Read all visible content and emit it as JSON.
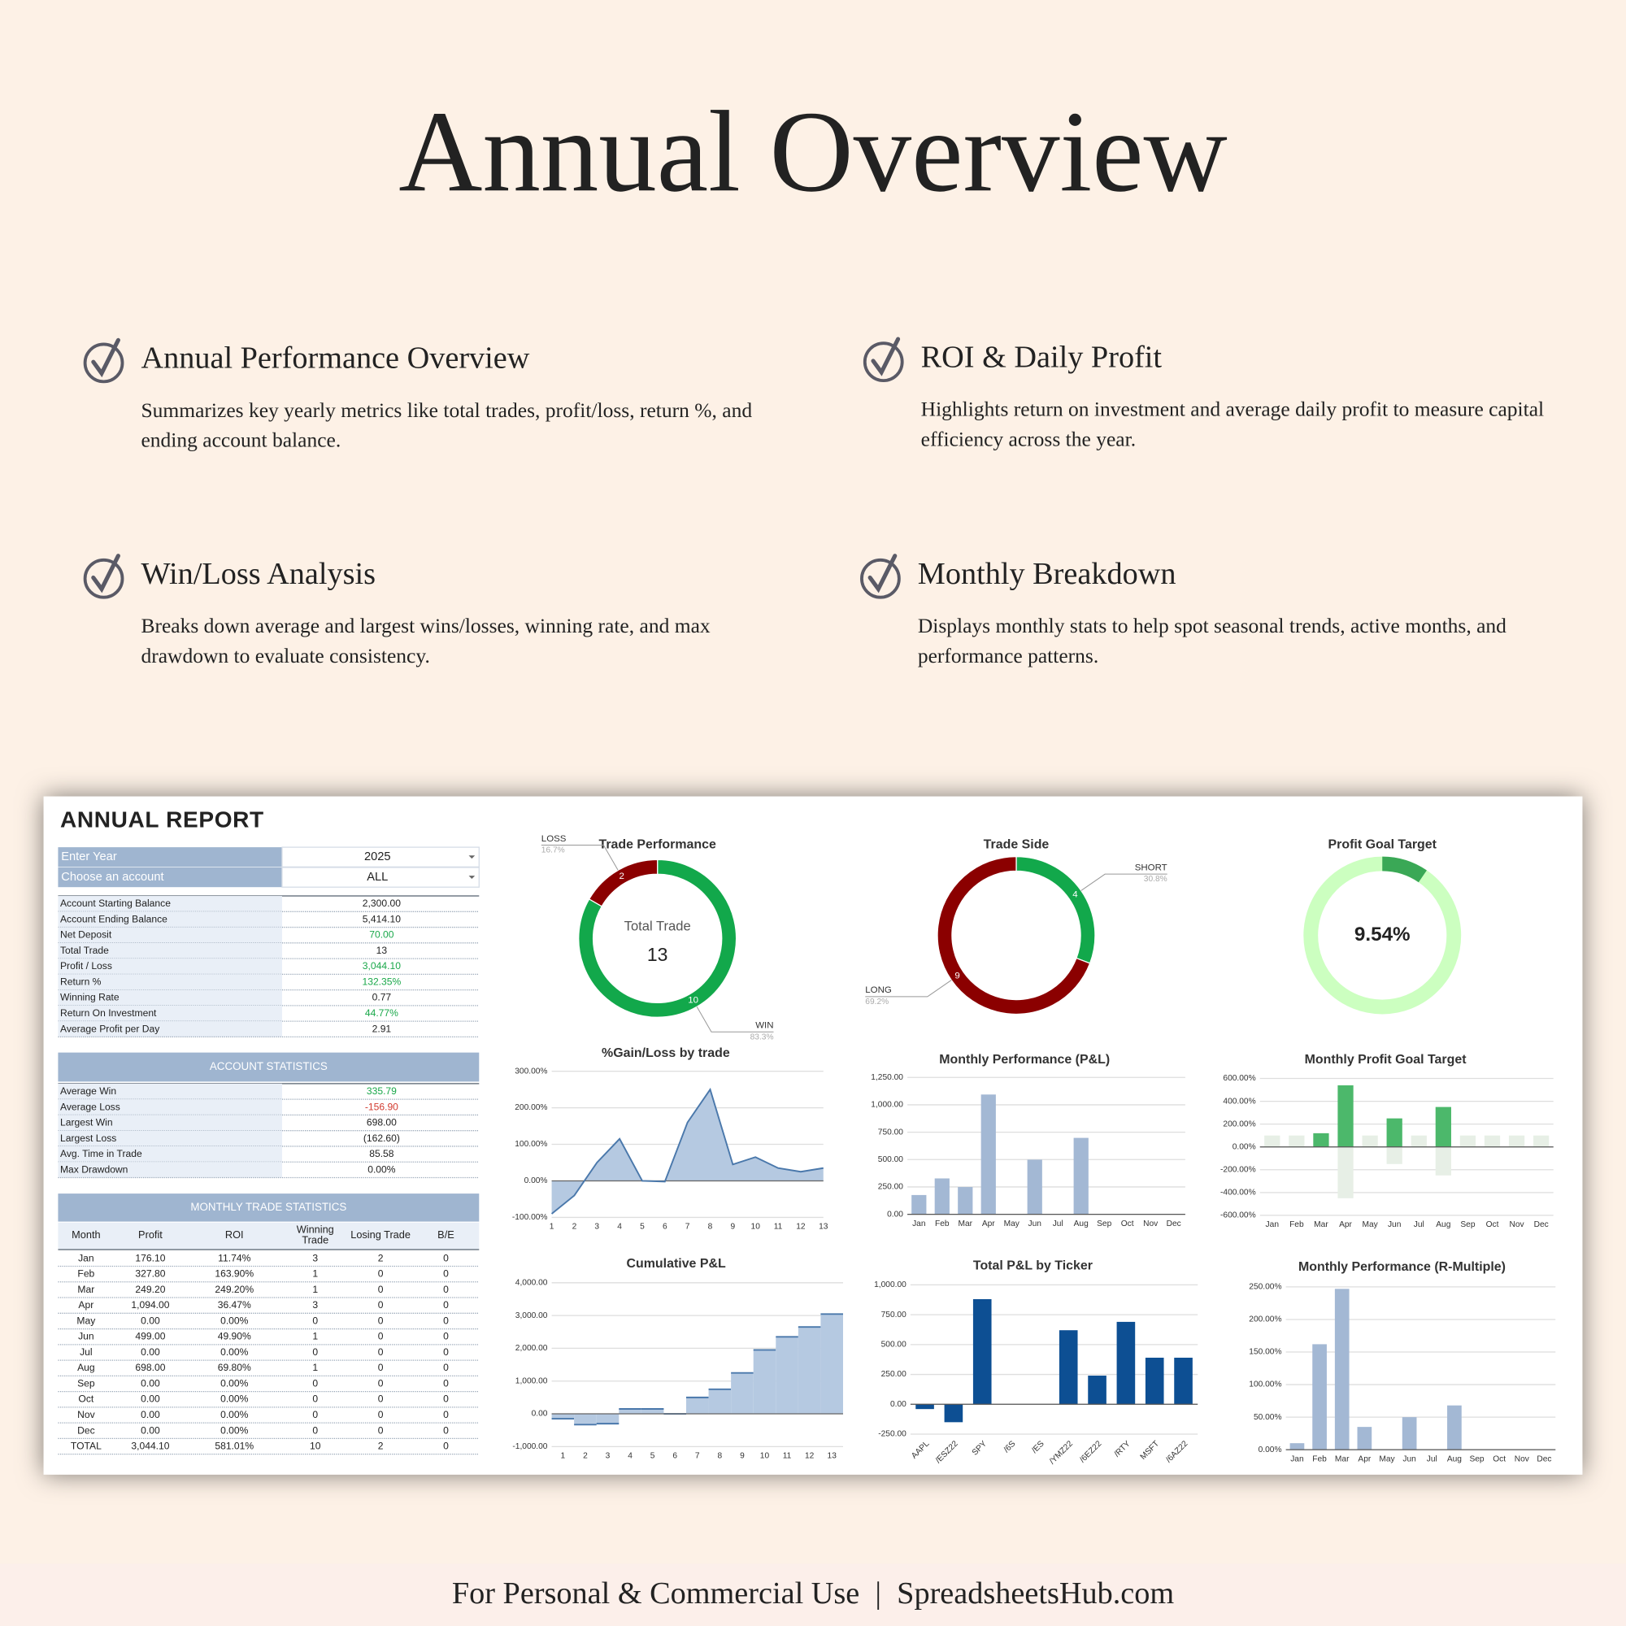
{
  "header": {
    "title": "Annual Overview"
  },
  "features": [
    {
      "title": "Annual Performance Overview",
      "description": "Summarizes key yearly metrics like total trades, profit/loss, return %, and ending account balance."
    },
    {
      "title": "ROI & Daily Profit",
      "description": "Highlights return on investment and average daily profit to measure capital efficiency across the year."
    },
    {
      "title": "Win/Loss Analysis",
      "description": "Breaks down average and largest wins/losses, winning rate, and max drawdown to evaluate consistency."
    },
    {
      "title": "Monthly Breakdown",
      "description": "Displays monthly stats to help spot seasonal trends, active months, and performance patterns."
    }
  ],
  "report": {
    "title": "ANNUAL REPORT",
    "inputs": [
      {
        "label": "Enter Year",
        "value": "2025"
      },
      {
        "label": "Choose an account",
        "value": "ALL"
      }
    ],
    "summary": [
      {
        "label": "Account Starting Balance",
        "value": "2,300.00"
      },
      {
        "label": "Account Ending Balance",
        "value": "5,414.10"
      },
      {
        "label": "Net Deposit",
        "value": "70.00",
        "color": "#1aa84a"
      },
      {
        "label": "Total Trade",
        "value": "13"
      },
      {
        "label": "Profit / Loss",
        "value": "3,044.10",
        "color": "#1aa84a"
      },
      {
        "label": "Return %",
        "value": "132.35%",
        "color": "#1aa84a"
      },
      {
        "label": "Winning Rate",
        "value": "0.77"
      },
      {
        "label": "Return On Investment",
        "value": "44.77%",
        "color": "#1aa84a"
      },
      {
        "label": "Average Profit per Day",
        "value": "2.91"
      }
    ],
    "account_statistics": {
      "title": "ACCOUNT STATISTICS",
      "rows": [
        {
          "label": "Average Win",
          "value": "335.79",
          "color": "#1aa84a"
        },
        {
          "label": "Average Loss",
          "value": "-156.90",
          "color": "#d23b2f"
        },
        {
          "label": "Largest Win",
          "value": "698.00"
        },
        {
          "label": "Largest Loss",
          "value": "(162.60)"
        },
        {
          "label": "Avg. Time in Trade",
          "value": "85.58"
        },
        {
          "label": "Max Drawdown",
          "value": "0.00%"
        }
      ]
    },
    "monthly_statistics": {
      "title": "MONTHLY TRADE STATISTICS",
      "columns": [
        "Month",
        "Profit",
        "ROI",
        "Winning Trade",
        "Losing Trade",
        "B/E"
      ],
      "rows": [
        [
          "Jan",
          "176.10",
          "11.74%",
          "3",
          "2",
          "0"
        ],
        [
          "Feb",
          "327.80",
          "163.90%",
          "1",
          "0",
          "0"
        ],
        [
          "Mar",
          "249.20",
          "249.20%",
          "1",
          "0",
          "0"
        ],
        [
          "Apr",
          "1,094.00",
          "36.47%",
          "3",
          "0",
          "0"
        ],
        [
          "May",
          "0.00",
          "0.00%",
          "0",
          "0",
          "0"
        ],
        [
          "Jun",
          "499.00",
          "49.90%",
          "1",
          "0",
          "0"
        ],
        [
          "Jul",
          "0.00",
          "0.00%",
          "0",
          "0",
          "0"
        ],
        [
          "Aug",
          "698.00",
          "69.80%",
          "1",
          "0",
          "0"
        ],
        [
          "Sep",
          "0.00",
          "0.00%",
          "0",
          "0",
          "0"
        ],
        [
          "Oct",
          "0.00",
          "0.00%",
          "0",
          "0",
          "0"
        ],
        [
          "Nov",
          "0.00",
          "0.00%",
          "0",
          "0",
          "0"
        ],
        [
          "Dec",
          "0.00",
          "0.00%",
          "0",
          "0",
          "0"
        ],
        [
          "TOTAL",
          "3,044.10",
          "581.01%",
          "10",
          "2",
          "0"
        ]
      ]
    }
  },
  "chart_data": [
    {
      "type": "donut",
      "title": "Trade Performance",
      "categories": [
        "WIN",
        "LOSS"
      ],
      "values": [
        10,
        2
      ],
      "percent_labels": [
        "83.3%",
        "16.7%"
      ],
      "colors": [
        "#12a84b",
        "#8b0000"
      ],
      "center_label": "Total Trade",
      "center_value": 13
    },
    {
      "type": "donut",
      "title": "Trade Side",
      "categories": [
        "SHORT",
        "LONG"
      ],
      "values": [
        4,
        9
      ],
      "percent_labels": [
        "30.8%",
        "69.2%"
      ],
      "colors": [
        "#12a84b",
        "#8b0000"
      ]
    },
    {
      "type": "gauge",
      "title": "Profit Goal Target",
      "value": 9.54,
      "value_label": "9.54%",
      "range": [
        0,
        100
      ],
      "color": "#3aa856",
      "track_color": "#ccffc0"
    },
    {
      "type": "line",
      "title": "%Gain/Loss by trade",
      "x": [
        1,
        2,
        3,
        4,
        5,
        6,
        7,
        8,
        9,
        10,
        11,
        12,
        13
      ],
      "values": [
        -90,
        -40,
        50,
        115,
        0,
        -2,
        160,
        250,
        45,
        65,
        35,
        25,
        35
      ],
      "xlim": [
        1,
        13
      ],
      "ylim": [
        -100,
        300
      ],
      "yticks": [
        {
          "value": -100,
          "label": "-100.00%"
        },
        {
          "value": 0,
          "label": "0.00%"
        },
        {
          "value": 100,
          "label": "100.00%"
        },
        {
          "value": 200,
          "label": "200.00%"
        },
        {
          "value": 300,
          "label": "300.00%"
        }
      ],
      "color": "#4a78ab",
      "fill": "#b5c9e1",
      "grid": true
    },
    {
      "type": "bar",
      "title": "Monthly Performance (P&L)",
      "categories": [
        "Jan",
        "Feb",
        "Mar",
        "Apr",
        "May",
        "Jun",
        "Jul",
        "Aug",
        "Sep",
        "Oct",
        "Nov",
        "Dec"
      ],
      "values": [
        176.1,
        327.8,
        249.2,
        1094.0,
        0,
        499.0,
        0,
        698.0,
        0,
        0,
        0,
        0
      ],
      "color": "#a3b8d4",
      "ylim": [
        0,
        1250
      ],
      "yticks": [
        {
          "value": 0,
          "label": "0.00"
        },
        {
          "value": 250,
          "label": "250.00"
        },
        {
          "value": 500,
          "label": "500.00"
        },
        {
          "value": 750,
          "label": "750.00"
        },
        {
          "value": 1000,
          "label": "1,000.00"
        },
        {
          "value": 1250,
          "label": "1,250.00"
        }
      ],
      "grid": true
    },
    {
      "type": "bar",
      "title": "Monthly Profit Goal Target",
      "categories": [
        "Jan",
        "Feb",
        "Mar",
        "Apr",
        "May",
        "Jun",
        "Jul",
        "Aug",
        "Sep",
        "Oct",
        "Nov",
        "Dec"
      ],
      "series": [
        {
          "color": "#e7efe6",
          "values": [
            100,
            100,
            0,
            -450,
            100,
            -150,
            100,
            -250,
            100,
            100,
            100,
            100
          ]
        },
        {
          "color": "#4cb86b",
          "values": [
            0,
            0,
            120,
            540,
            0,
            250,
            0,
            350,
            0,
            0,
            0,
            0
          ]
        }
      ],
      "ylim": [
        -600,
        600
      ],
      "yticks": [
        {
          "value": -600,
          "label": "-600.00%"
        },
        {
          "value": -400,
          "label": "-400.00%"
        },
        {
          "value": -200,
          "label": "-200.00%"
        },
        {
          "value": 0,
          "label": "0.00%"
        },
        {
          "value": 200,
          "label": "200.00%"
        },
        {
          "value": 400,
          "label": "400.00%"
        },
        {
          "value": 600,
          "label": "600.00%"
        }
      ],
      "grid": true
    },
    {
      "type": "step-area",
      "title": "Cumulative P&L",
      "x": [
        1,
        2,
        3,
        4,
        5,
        6,
        7,
        8,
        9,
        10,
        11,
        12,
        13
      ],
      "values": [
        -150,
        -330,
        -300,
        150,
        150,
        0,
        500,
        750,
        1250,
        1950,
        2350,
        2650,
        3044.1
      ],
      "xlim": [
        0.5,
        13.5
      ],
      "ylim": [
        -1000,
        4000
      ],
      "yticks": [
        {
          "value": -1000,
          "label": "-1,000.00"
        },
        {
          "value": 0,
          "label": "0.00"
        },
        {
          "value": 1000,
          "label": "1,000.00"
        },
        {
          "value": 2000,
          "label": "2,000.00"
        },
        {
          "value": 3000,
          "label": "3,000.00"
        },
        {
          "value": 4000,
          "label": "4,000.00"
        }
      ],
      "color": "#4a78ab",
      "fill": "#b5c9e1",
      "grid": true
    },
    {
      "type": "bar",
      "title": "Total P&L by Ticker",
      "categories": [
        "AAPL",
        "/ESZ22",
        "SPY",
        "/6S",
        "/ES",
        "/YMZ22",
        "/6EZ22",
        "/RTY",
        "MSFT",
        "/6AZ22"
      ],
      "values": [
        -40,
        -150,
        880,
        0,
        0,
        620,
        240,
        690,
        390,
        390
      ],
      "color": "#0d4f93",
      "ylim": [
        -250,
        1000
      ],
      "yticks": [
        {
          "value": -250,
          "label": "-250.00"
        },
        {
          "value": 0,
          "label": "0.00"
        },
        {
          "value": 250,
          "label": "250.00"
        },
        {
          "value": 500,
          "label": "500.00"
        },
        {
          "value": 750,
          "label": "750.00"
        },
        {
          "value": 1000,
          "label": "1,000.00"
        }
      ],
      "grid": true,
      "rotate_labels": true
    },
    {
      "type": "bar",
      "title": "Monthly Performance (R-Multiple)",
      "categories": [
        "Jan",
        "Feb",
        "Mar",
        "Apr",
        "May",
        "Jun",
        "Jul",
        "Aug",
        "Sep",
        "Oct",
        "Nov",
        "Dec"
      ],
      "values": [
        10,
        162,
        247,
        35,
        0,
        50,
        0,
        68,
        0,
        0,
        0,
        0
      ],
      "color": "#a3b8d4",
      "ylim": [
        0,
        250
      ],
      "yticks": [
        {
          "value": 0,
          "label": "0.00%"
        },
        {
          "value": 50,
          "label": "50.00%"
        },
        {
          "value": 100,
          "label": "100.00%"
        },
        {
          "value": 150,
          "label": "150.00%"
        },
        {
          "value": 200,
          "label": "200.00%"
        },
        {
          "value": 250,
          "label": "250.00%"
        }
      ],
      "grid": true
    }
  ],
  "footer": {
    "text": "For Personal & Commercial Use  |  SpreadsheetsHub.com"
  }
}
